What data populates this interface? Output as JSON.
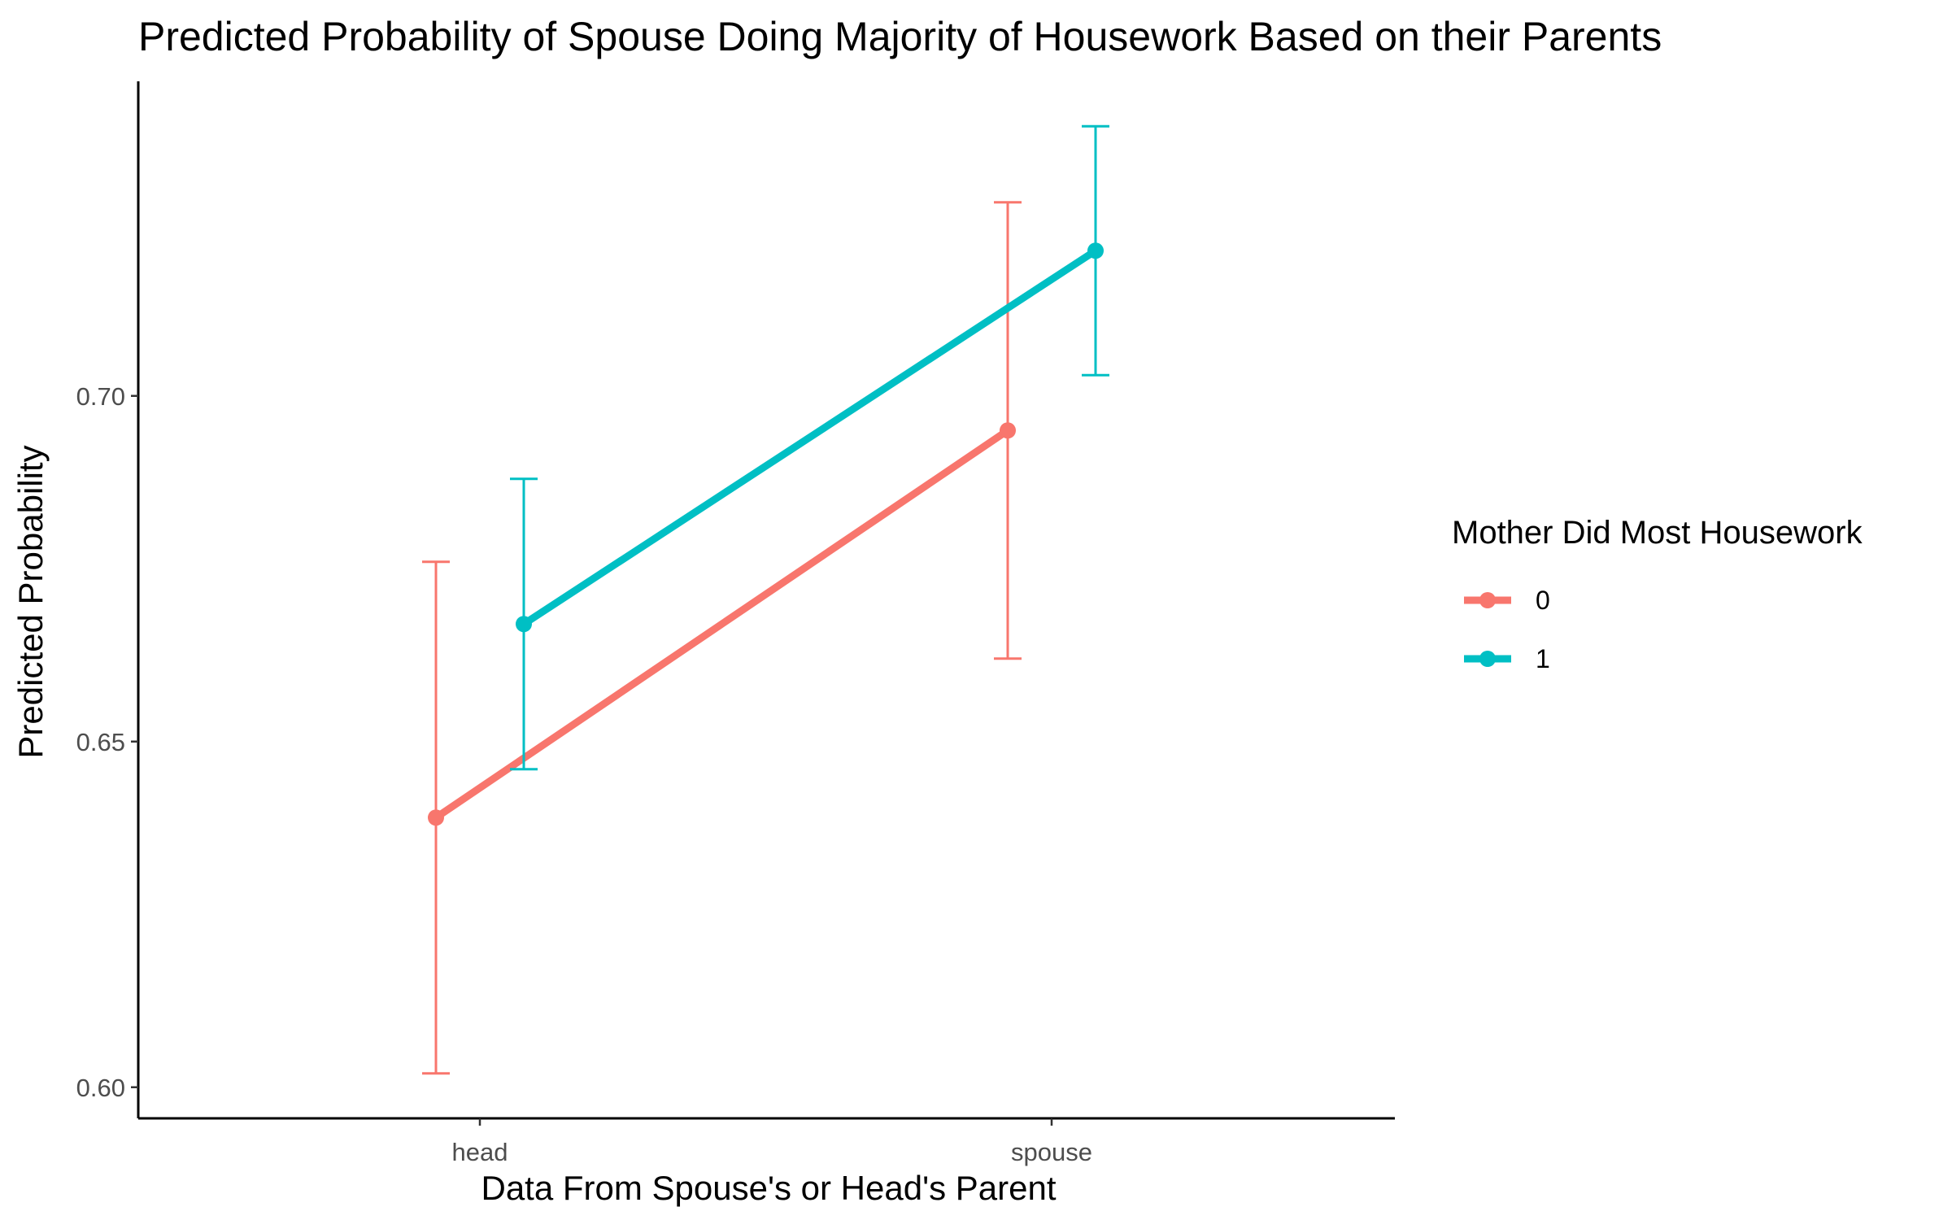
{
  "chart_data": {
    "type": "line",
    "title": "Predicted Probability of Spouse Doing Majority of Housework Based on their Parents",
    "xlabel": "Data From Spouse's or Head's Parent",
    "ylabel": "Predicted Probability",
    "categories": [
      "head",
      "spouse"
    ],
    "yticks": [
      0.6,
      0.65,
      0.7
    ],
    "ytick_labels": [
      "0.60",
      "0.65",
      "0.70"
    ],
    "ylim": [
      0.5955,
      0.7455
    ],
    "grid": false,
    "legend": {
      "title": "Mother Did Most Housework",
      "position": "right"
    },
    "series": [
      {
        "name": "0",
        "color": "#F8766D",
        "values": [
          0.639,
          0.695
        ],
        "lower": [
          0.602,
          0.662
        ],
        "upper": [
          0.676,
          0.728
        ]
      },
      {
        "name": "1",
        "color": "#00BFC4",
        "values": [
          0.667,
          0.721
        ],
        "lower": [
          0.646,
          0.703
        ],
        "upper": [
          0.688,
          0.739
        ]
      }
    ]
  }
}
